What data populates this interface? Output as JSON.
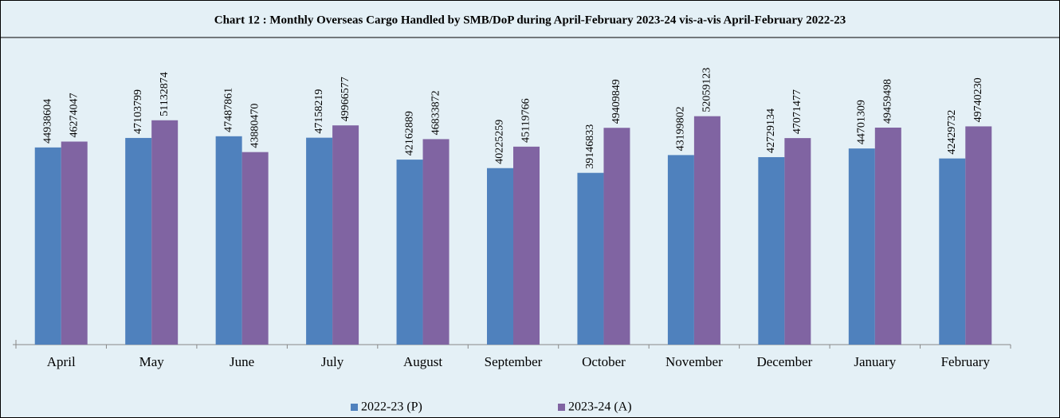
{
  "chart_data": {
    "type": "bar",
    "title": "Chart 12 : Monthly Overseas Cargo Handled by SMB/DoP during April-February 2023-24 vis-a-vis April-February 2022-23",
    "categories": [
      "April",
      "May",
      "June",
      "July",
      "August",
      "September",
      "October",
      "November",
      "December",
      "January",
      "February"
    ],
    "series": [
      {
        "name": "2022-23 (P)",
        "color": "#4f81bd",
        "values": [
          44938604,
          47103799,
          47487861,
          47158219,
          42162889,
          40225259,
          39146833,
          43199802,
          42729134,
          44701309,
          42429732
        ]
      },
      {
        "name": "2023-24 (A)",
        "color": "#8064a2",
        "values": [
          46274047,
          51132874,
          43880470,
          49966577,
          46833872,
          45119766,
          49409849,
          52059123,
          47071477,
          49459498,
          49740230
        ]
      }
    ],
    "ylim": [
      0,
      70000000
    ],
    "legend": "bottom"
  }
}
